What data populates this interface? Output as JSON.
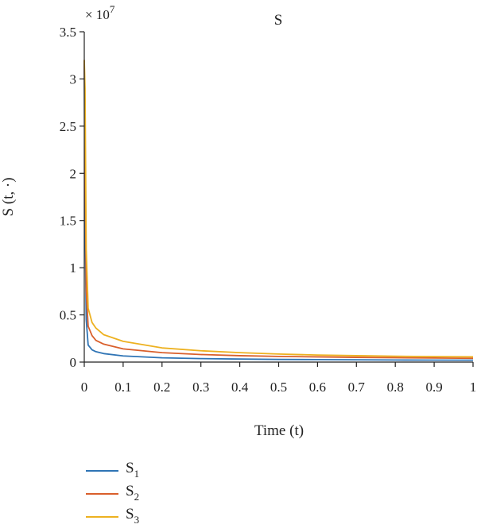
{
  "chart_data": {
    "type": "line",
    "title": "S",
    "xlabel": "Time (t)",
    "ylabel": "S (t, ·)",
    "y_multiplier": "× 10",
    "y_multiplier_exponent": "7",
    "xlim": [
      0,
      1
    ],
    "ylim": [
      0,
      3.5
    ],
    "x_ticks": [
      0,
      0.1,
      0.2,
      0.3,
      0.4,
      0.5,
      0.6,
      0.7,
      0.8,
      0.9,
      1
    ],
    "x_tick_labels": [
      "0",
      "0.1",
      "0.2",
      "0.3",
      "0.4",
      "0.5",
      "0.6",
      "0.7",
      "0.8",
      "0.9",
      "1"
    ],
    "y_ticks": [
      0,
      0.5,
      1,
      1.5,
      2,
      2.5,
      3,
      3.5
    ],
    "y_tick_labels": [
      "0",
      "0.5",
      "1",
      "1.5",
      "2",
      "2.5",
      "3",
      "3.5"
    ],
    "grid": false,
    "legend_position": "bottom-left, below plot",
    "series": [
      {
        "name": "S1",
        "label_base": "S",
        "label_sub": "1",
        "color": "#2f74b5",
        "x": [
          0,
          0.002,
          0.005,
          0.01,
          0.02,
          0.03,
          0.05,
          0.1,
          0.2,
          0.3,
          0.4,
          0.5,
          0.6,
          0.7,
          0.8,
          0.9,
          1.0
        ],
        "y": [
          3.2,
          1.5,
          0.45,
          0.18,
          0.13,
          0.11,
          0.09,
          0.065,
          0.045,
          0.037,
          0.032,
          0.028,
          0.026,
          0.024,
          0.022,
          0.021,
          0.02
        ]
      },
      {
        "name": "S2",
        "label_base": "S",
        "label_sub": "2",
        "color": "#d95f2b",
        "x": [
          0,
          0.002,
          0.005,
          0.01,
          0.02,
          0.03,
          0.05,
          0.1,
          0.2,
          0.3,
          0.4,
          0.5,
          0.6,
          0.7,
          0.8,
          0.9,
          1.0
        ],
        "y": [
          3.2,
          2.3,
          0.75,
          0.38,
          0.28,
          0.23,
          0.19,
          0.14,
          0.1,
          0.08,
          0.068,
          0.06,
          0.055,
          0.05,
          0.046,
          0.043,
          0.04
        ]
      },
      {
        "name": "S3",
        "label_base": "S",
        "label_sub": "3",
        "color": "#edb120",
        "x": [
          0,
          0.002,
          0.005,
          0.01,
          0.02,
          0.03,
          0.05,
          0.1,
          0.2,
          0.3,
          0.4,
          0.5,
          0.6,
          0.7,
          0.8,
          0.9,
          1.0
        ],
        "y": [
          3.2,
          2.9,
          1.2,
          0.57,
          0.42,
          0.36,
          0.29,
          0.22,
          0.15,
          0.12,
          0.1,
          0.085,
          0.075,
          0.068,
          0.062,
          0.058,
          0.055
        ]
      }
    ]
  }
}
